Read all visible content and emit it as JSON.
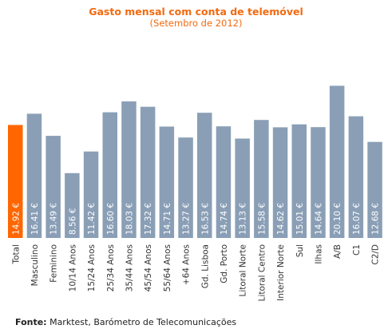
{
  "chart_data": {
    "type": "bar",
    "title": "Gasto mensal com conta de telemóvel",
    "subtitle": "(Setembro de 2012)",
    "categories": [
      "Total",
      "Masculino",
      "Feminino",
      "10/14 Anos",
      "15/24 Anos",
      "25/34 Anos",
      "35/44 Anos",
      "45/54 Anos",
      "55/64 Anos",
      "+64 Anos",
      "Gd. Lisboa",
      "Gd. Porto",
      "Litoral Norte",
      "Litoral Centro",
      "Interior Norte",
      "Sul",
      "Ilhas",
      "A/B",
      "C1",
      "C2/D"
    ],
    "values": [
      14.92,
      16.41,
      13.49,
      8.56,
      11.42,
      16.6,
      18.03,
      17.32,
      14.71,
      13.27,
      16.53,
      14.74,
      13.13,
      15.58,
      14.62,
      15.01,
      14.64,
      20.1,
      16.07,
      12.68
    ],
    "value_labels": [
      "14.92 €",
      "16.41 €",
      "13.49 €",
      "8.56 €",
      "11.42 €",
      "16.60 €",
      "18.03 €",
      "17.32 €",
      "14.71 €",
      "13.27 €",
      "16.53 €",
      "14.74 €",
      "13.13 €",
      "15.58 €",
      "14.62 €",
      "15.01 €",
      "14.64 €",
      "20.10 €",
      "16.07 €",
      "12.68 €"
    ],
    "highlight_index": 0,
    "ylim": [
      0,
      21.3
    ],
    "grid": false,
    "colors": {
      "highlight": "#ff6600",
      "bar": "#8a9fb6",
      "title": "#f26a10"
    }
  },
  "source": {
    "label": "Fonte:",
    "text": " Marktest, Barómetro de Telecomunicações"
  }
}
